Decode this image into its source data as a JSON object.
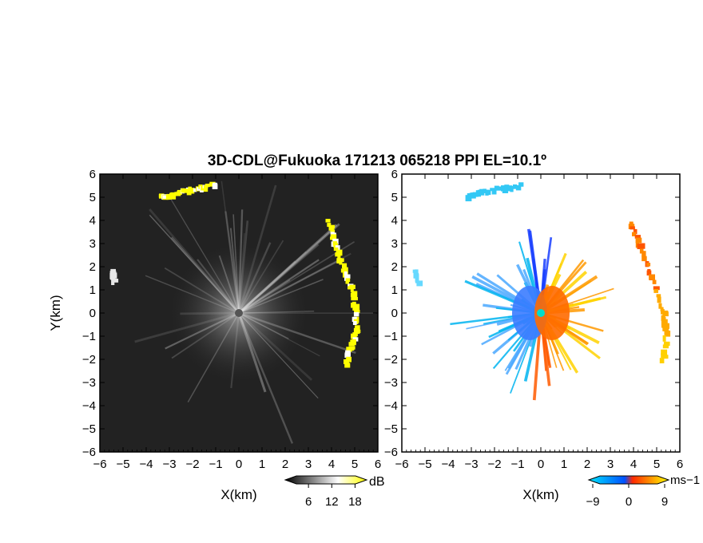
{
  "chart_data": [
    {
      "type": "heatmap",
      "panel": "left",
      "title": "3D-CDL@Fukuoka 171213 065218 PPI EL=10.1º",
      "xlabel": "X(km)",
      "ylabel": "Y(km)",
      "xlim": [
        -6,
        6
      ],
      "ylim": [
        -6,
        6
      ],
      "x_ticks": [
        "−6",
        "−5",
        "−4",
        "−3",
        "−2",
        "−1",
        "0",
        "1",
        "2",
        "3",
        "4",
        "5",
        "6"
      ],
      "y_ticks": [
        "6",
        "5",
        "4",
        "3",
        "2",
        "1",
        "0",
        "−1",
        "−2",
        "−3",
        "−4",
        "−5",
        "−6"
      ],
      "colorbar": {
        "unit": "dB",
        "ticks": [
          "6",
          "12",
          "18"
        ],
        "range": [
          0,
          21
        ],
        "colors": [
          "#000000",
          "#ffffff",
          "#ffff00"
        ]
      },
      "background_color": "#222222",
      "features": [
        {
          "name": "north-arc",
          "points": [
            [
              -3.4,
              5.0
            ],
            [
              -2.9,
              5.1
            ],
            [
              -2.2,
              5.3
            ],
            [
              -1.6,
              5.4
            ],
            [
              -1.0,
              5.55
            ]
          ],
          "value_db": 18
        },
        {
          "name": "east-arc",
          "points": [
            [
              3.9,
              3.9
            ],
            [
              4.1,
              3.2
            ],
            [
              4.3,
              2.5
            ],
            [
              4.6,
              1.7
            ],
            [
              4.9,
              0.9
            ],
            [
              5.05,
              0.0
            ],
            [
              5.05,
              -0.8
            ],
            [
              4.8,
              -1.6
            ],
            [
              4.6,
              -2.2
            ]
          ],
          "value_db": 18
        },
        {
          "name": "west-patch",
          "points": [
            [
              -5.45,
              1.8
            ],
            [
              -5.35,
              1.35
            ]
          ],
          "value_db": 12
        }
      ]
    },
    {
      "type": "heatmap",
      "panel": "right",
      "xlabel": "X(km)",
      "xlim": [
        -6,
        6
      ],
      "ylim": [
        -6,
        6
      ],
      "x_ticks": [
        "−6",
        "−5",
        "−4",
        "−3",
        "−2",
        "−1",
        "0",
        "1",
        "2",
        "3",
        "4",
        "5",
        "6"
      ],
      "y_ticks": [
        "6",
        "5",
        "4",
        "3",
        "2",
        "1",
        "0",
        "−1",
        "−2",
        "−3",
        "−4",
        "−5",
        "−6"
      ],
      "colorbar": {
        "unit": "ms−1",
        "ticks": [
          "−9",
          "0",
          "9"
        ],
        "range": [
          -10,
          10
        ],
        "colors": [
          "#00e5ff",
          "#0050ff",
          "#ff2a00",
          "#ffff00"
        ]
      },
      "features": [
        {
          "name": "north-arc",
          "points": [
            [
              -3.2,
              5.0
            ],
            [
              -2.6,
              5.2
            ],
            [
              -1.8,
              5.35
            ],
            [
              -0.9,
              5.5
            ]
          ],
          "velocity": -4
        },
        {
          "name": "east-arc",
          "points": [
            [
              3.9,
              3.9
            ],
            [
              4.3,
              2.9
            ],
            [
              4.8,
              1.5
            ],
            [
              5.3,
              0.0
            ],
            [
              5.4,
              -0.8
            ],
            [
              5.3,
              -2.1
            ]
          ],
          "velocity": 5
        },
        {
          "name": "west-patch",
          "points": [
            [
              -5.4,
              1.8
            ],
            [
              -5.3,
              1.3
            ]
          ],
          "velocity": -8
        }
      ]
    }
  ]
}
